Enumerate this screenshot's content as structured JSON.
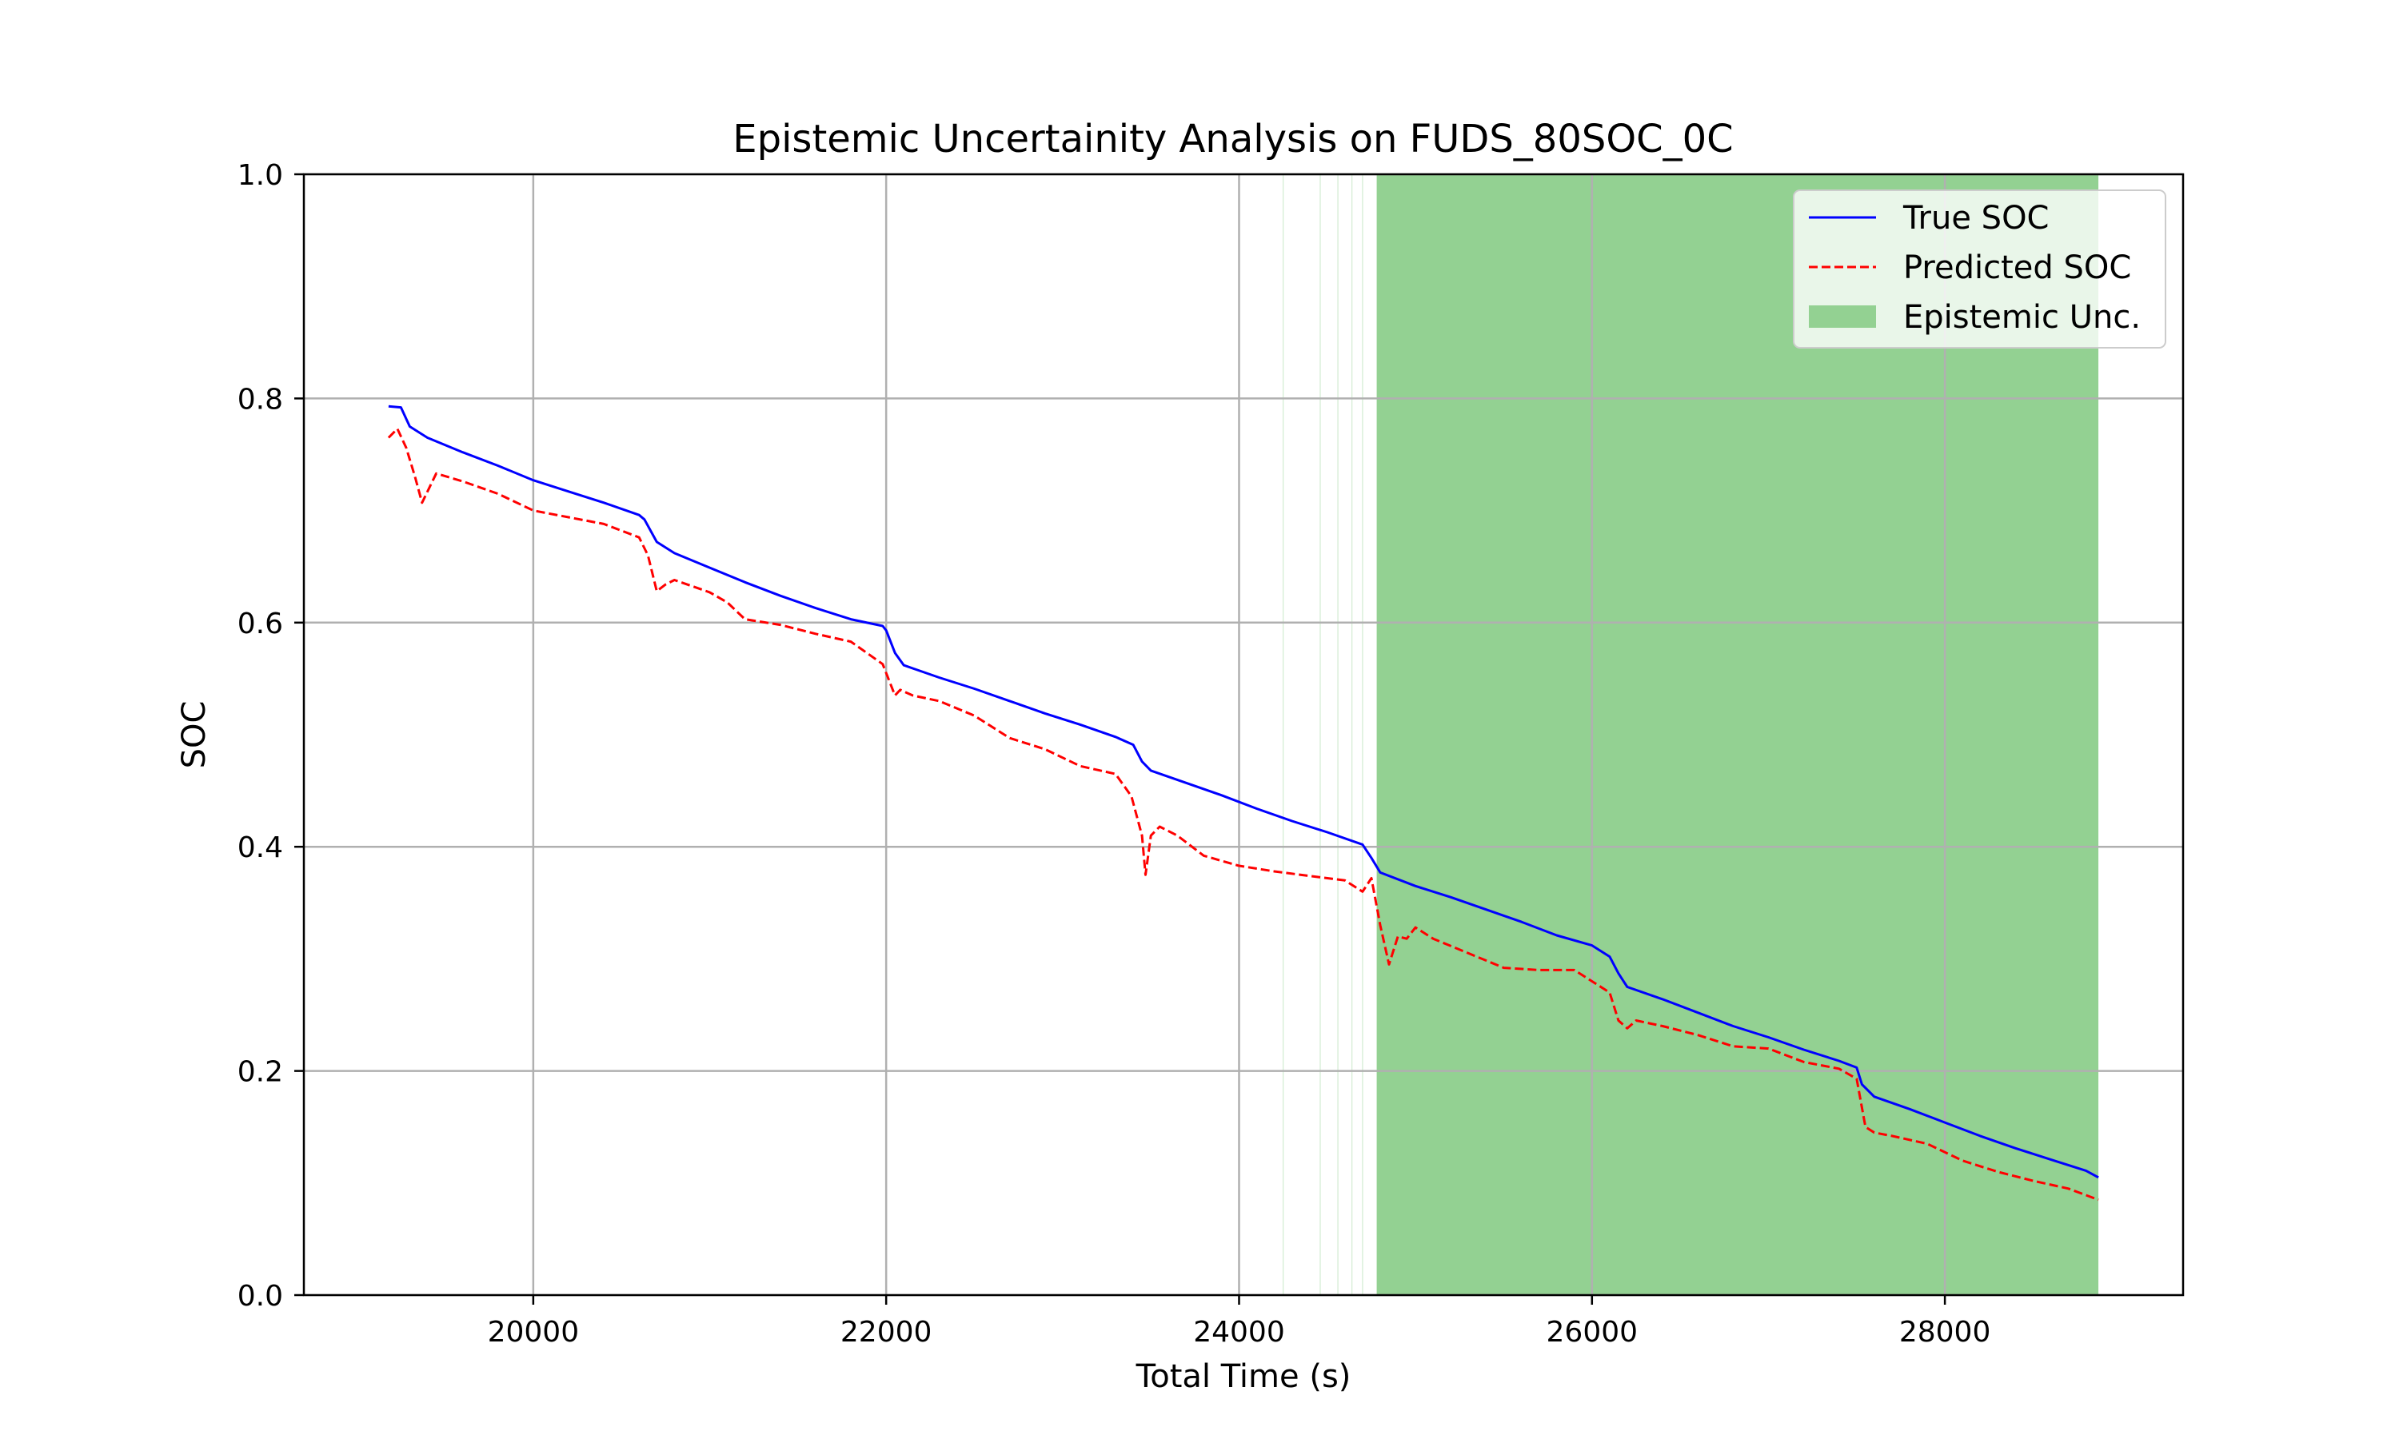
{
  "chart_data": {
    "type": "line",
    "title": "Epistemic Uncertainity Analysis on FUDS_80SOC_0C",
    "xlabel": "Total Time (s)",
    "ylabel": "SOC",
    "xlim": [
      18700,
      29350
    ],
    "ylim": [
      0.0,
      1.0
    ],
    "x_ticks": [
      20000,
      22000,
      24000,
      26000,
      28000
    ],
    "y_ticks": [
      0.0,
      0.2,
      0.4,
      0.6,
      0.8,
      1.0
    ],
    "x_tick_labels": [
      "20000",
      "22000",
      "24000",
      "26000",
      "28000"
    ],
    "y_tick_labels": [
      "0.0",
      "0.2",
      "0.4",
      "0.6",
      "0.8",
      "1.0"
    ],
    "grid": true,
    "legend_position": "top-right",
    "legend": [
      "True SOC",
      "Predicted SOC",
      "Epistemic Unc."
    ],
    "colors": {
      "true_soc": "#0000ff",
      "predicted_soc": "#ff0000",
      "epistemic_unc": "#93d192"
    },
    "series": [
      {
        "name": "True SOC",
        "style": "solid",
        "x": [
          19180,
          19250,
          19300,
          19400,
          19600,
          19800,
          20000,
          20200,
          20400,
          20600,
          20630,
          20700,
          20800,
          21000,
          21200,
          21400,
          21600,
          21800,
          21980,
          22000,
          22050,
          22100,
          22300,
          22500,
          22700,
          22900,
          23100,
          23300,
          23400,
          23450,
          23500,
          23700,
          23900,
          24100,
          24300,
          24500,
          24700,
          24750,
          24800,
          25000,
          25200,
          25400,
          25600,
          25800,
          26000,
          26100,
          26150,
          26200,
          26400,
          26600,
          26800,
          27000,
          27200,
          27400,
          27500,
          27530,
          27600,
          27800,
          28000,
          28200,
          28400,
          28600,
          28800,
          28870
        ],
        "y": [
          0.793,
          0.792,
          0.775,
          0.765,
          0.752,
          0.74,
          0.727,
          0.717,
          0.707,
          0.696,
          0.692,
          0.672,
          0.662,
          0.649,
          0.636,
          0.624,
          0.613,
          0.603,
          0.597,
          0.593,
          0.573,
          0.562,
          0.551,
          0.541,
          0.53,
          0.519,
          0.509,
          0.498,
          0.491,
          0.476,
          0.468,
          0.457,
          0.446,
          0.434,
          0.423,
          0.413,
          0.402,
          0.39,
          0.377,
          0.365,
          0.355,
          0.344,
          0.333,
          0.321,
          0.312,
          0.302,
          0.287,
          0.275,
          0.264,
          0.252,
          0.24,
          0.23,
          0.219,
          0.209,
          0.203,
          0.188,
          0.177,
          0.166,
          0.154,
          0.142,
          0.131,
          0.121,
          0.111,
          0.105
        ]
      },
      {
        "name": "Predicted SOC",
        "style": "dashed",
        "x": [
          19180,
          19230,
          19280,
          19330,
          19370,
          19450,
          19600,
          19800,
          20000,
          20200,
          20400,
          20600,
          20650,
          20700,
          20750,
          20800,
          21000,
          21100,
          21200,
          21400,
          21600,
          21800,
          21980,
          22050,
          22080,
          22150,
          22300,
          22500,
          22700,
          22900,
          23100,
          23300,
          23390,
          23450,
          23470,
          23500,
          23550,
          23650,
          23800,
          24000,
          24200,
          24400,
          24600,
          24700,
          24750,
          24800,
          24850,
          24900,
          24950,
          25000,
          25100,
          25300,
          25500,
          25700,
          25900,
          26100,
          26150,
          26200,
          26250,
          26400,
          26600,
          26800,
          27000,
          27200,
          27400,
          27500,
          27550,
          27600,
          27700,
          27900,
          28100,
          28300,
          28500,
          28700,
          28870
        ],
        "y": [
          0.765,
          0.773,
          0.756,
          0.73,
          0.707,
          0.733,
          0.726,
          0.715,
          0.7,
          0.694,
          0.688,
          0.676,
          0.66,
          0.628,
          0.634,
          0.638,
          0.627,
          0.618,
          0.603,
          0.598,
          0.59,
          0.583,
          0.563,
          0.535,
          0.54,
          0.535,
          0.53,
          0.517,
          0.497,
          0.487,
          0.472,
          0.465,
          0.445,
          0.41,
          0.375,
          0.41,
          0.418,
          0.41,
          0.392,
          0.383,
          0.378,
          0.374,
          0.37,
          0.36,
          0.372,
          0.33,
          0.295,
          0.32,
          0.318,
          0.328,
          0.318,
          0.305,
          0.292,
          0.29,
          0.29,
          0.27,
          0.245,
          0.238,
          0.245,
          0.24,
          0.232,
          0.222,
          0.22,
          0.208,
          0.202,
          0.193,
          0.15,
          0.145,
          0.142,
          0.135,
          0.12,
          0.11,
          0.102,
          0.095,
          0.085
        ]
      }
    ],
    "uncertainty_band": {
      "name": "Epistemic Unc.",
      "x_start": 24780,
      "x_end": 28870,
      "lower": 0.0,
      "upper": 1.0,
      "sparse_lines_x": [
        24250,
        24460,
        24560,
        24640,
        24700
      ]
    }
  }
}
